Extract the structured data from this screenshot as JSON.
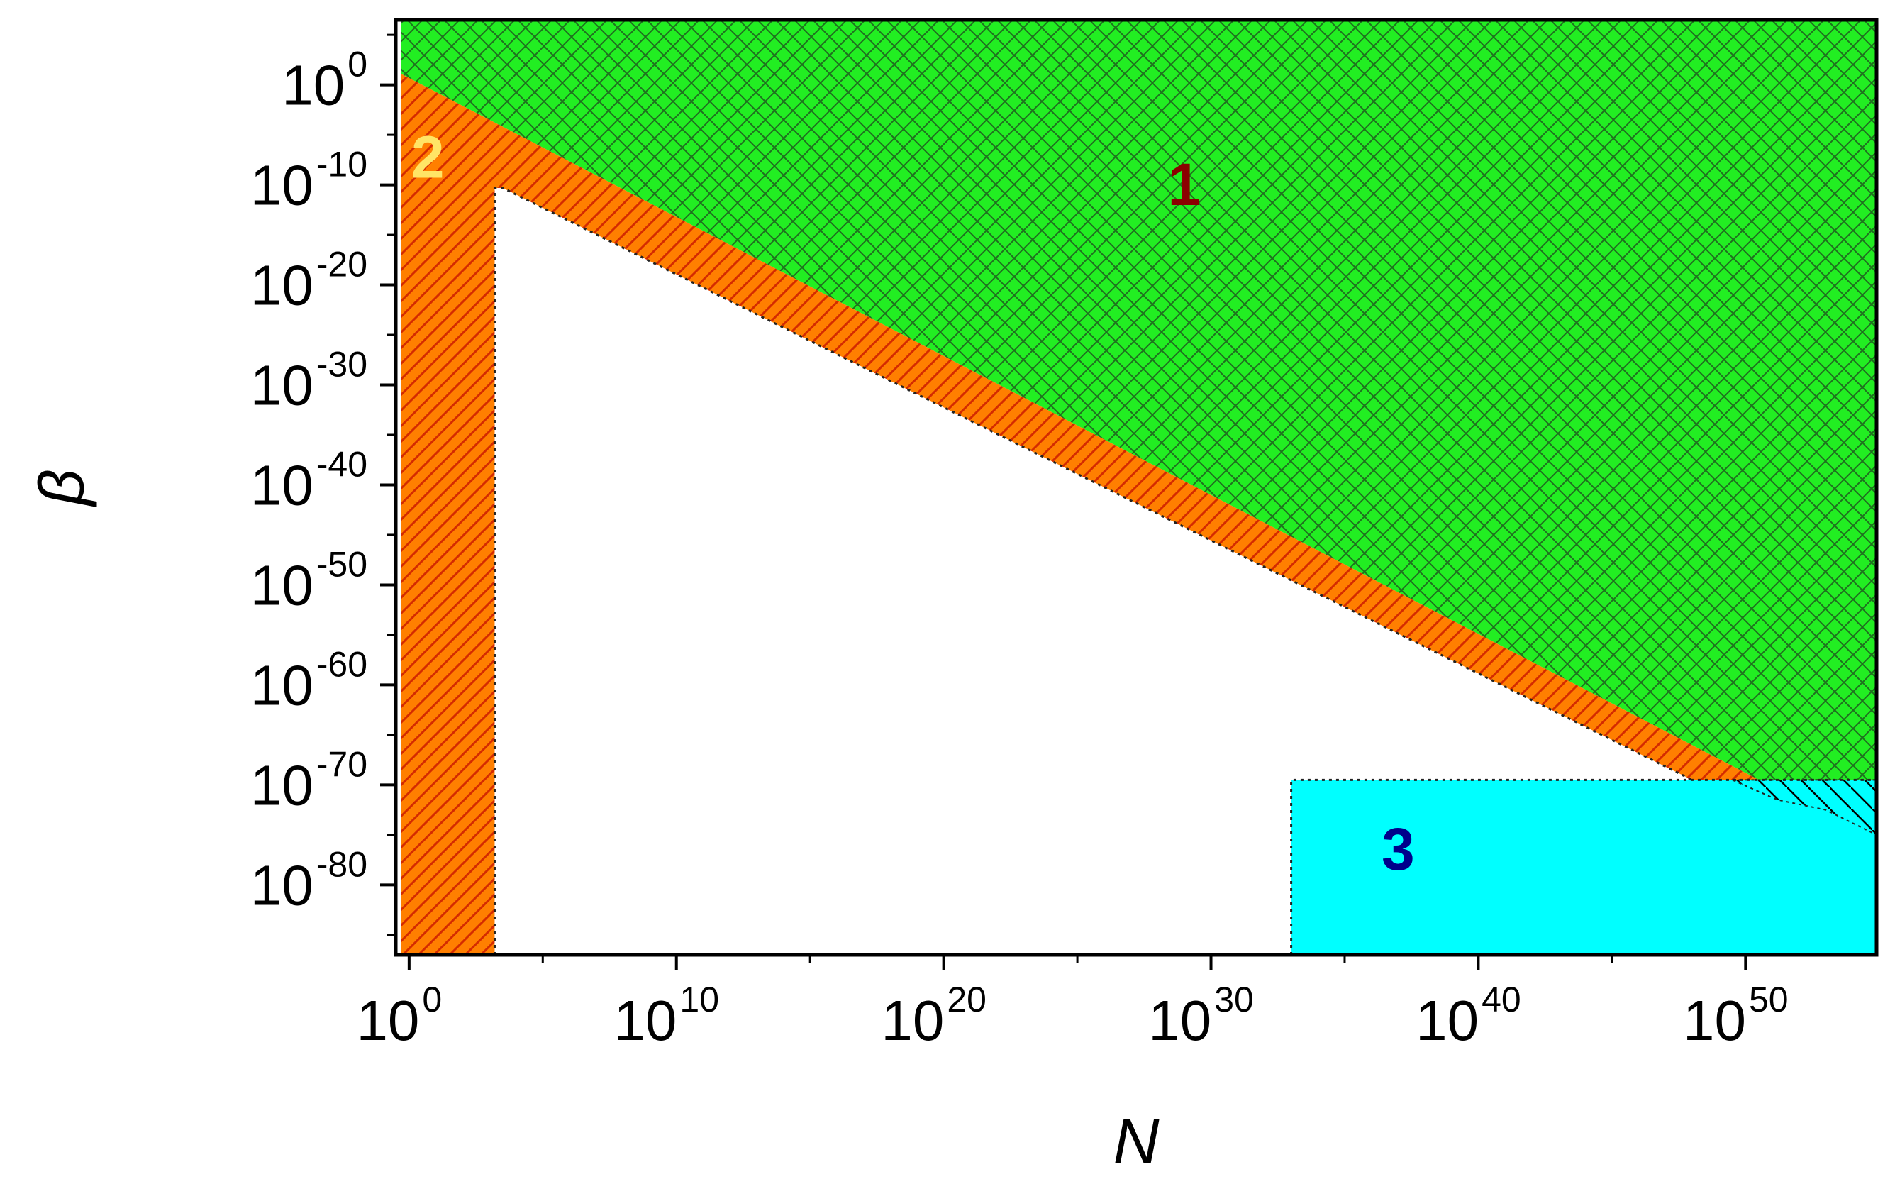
{
  "chart_data": {
    "type": "area",
    "title": "",
    "xlabel": "N",
    "ylabel": "β",
    "xscale": "log",
    "yscale": "log",
    "xlim": [
      "1e-0.5",
      "1e55"
    ],
    "ylim": [
      "1e-87",
      "1e7"
    ],
    "x_ticks": [
      {
        "base": "10",
        "exp": "0"
      },
      {
        "base": "10",
        "exp": "10"
      },
      {
        "base": "10",
        "exp": "20"
      },
      {
        "base": "10",
        "exp": "30"
      },
      {
        "base": "10",
        "exp": "40"
      },
      {
        "base": "10",
        "exp": "50"
      }
    ],
    "y_ticks": [
      {
        "base": "10",
        "exp": "0"
      },
      {
        "base": "10",
        "exp": "-10"
      },
      {
        "base": "10",
        "exp": "-20"
      },
      {
        "base": "10",
        "exp": "-30"
      },
      {
        "base": "10",
        "exp": "-40"
      },
      {
        "base": "10",
        "exp": "-50"
      },
      {
        "base": "10",
        "exp": "-60"
      },
      {
        "base": "10",
        "exp": "-70"
      },
      {
        "base": "10",
        "exp": "-80"
      }
    ],
    "regions": [
      {
        "label": "1",
        "fill": "#22ee22",
        "pattern": "crosshatch",
        "label_color": "#8b0000",
        "label_at_log": [
          29,
          -12
        ],
        "polygon_log": [
          [
            -0.3,
            7
          ],
          [
            55,
            7
          ],
          [
            55,
            -69.5
          ],
          [
            50.5,
            -69.5
          ],
          [
            -0.3,
            1.1
          ]
        ]
      },
      {
        "label": "2",
        "fill": "#ff7f00",
        "pattern": "hatch-diagonal",
        "label_color": "#ffe566",
        "label_at_log": [
          0.7,
          -9.3
        ],
        "polygon_log": [
          [
            -0.3,
            1.1
          ],
          [
            50.5,
            -69.5
          ],
          [
            50.5,
            -70
          ],
          [
            48,
            -69.5
          ],
          [
            3.5,
            -10.3
          ],
          [
            3.2,
            -10.3
          ],
          [
            3.2,
            -87
          ],
          [
            -0.3,
            -87
          ]
        ]
      },
      {
        "label": "3",
        "fill": "#00ffff",
        "pattern": "none",
        "label_color": "#00008b",
        "label_at_log": [
          37,
          -78.5
        ],
        "polygon_log": [
          [
            33,
            -69.5
          ],
          [
            55,
            -69.5
          ],
          [
            55,
            -87
          ],
          [
            33,
            -87
          ]
        ]
      }
    ]
  }
}
